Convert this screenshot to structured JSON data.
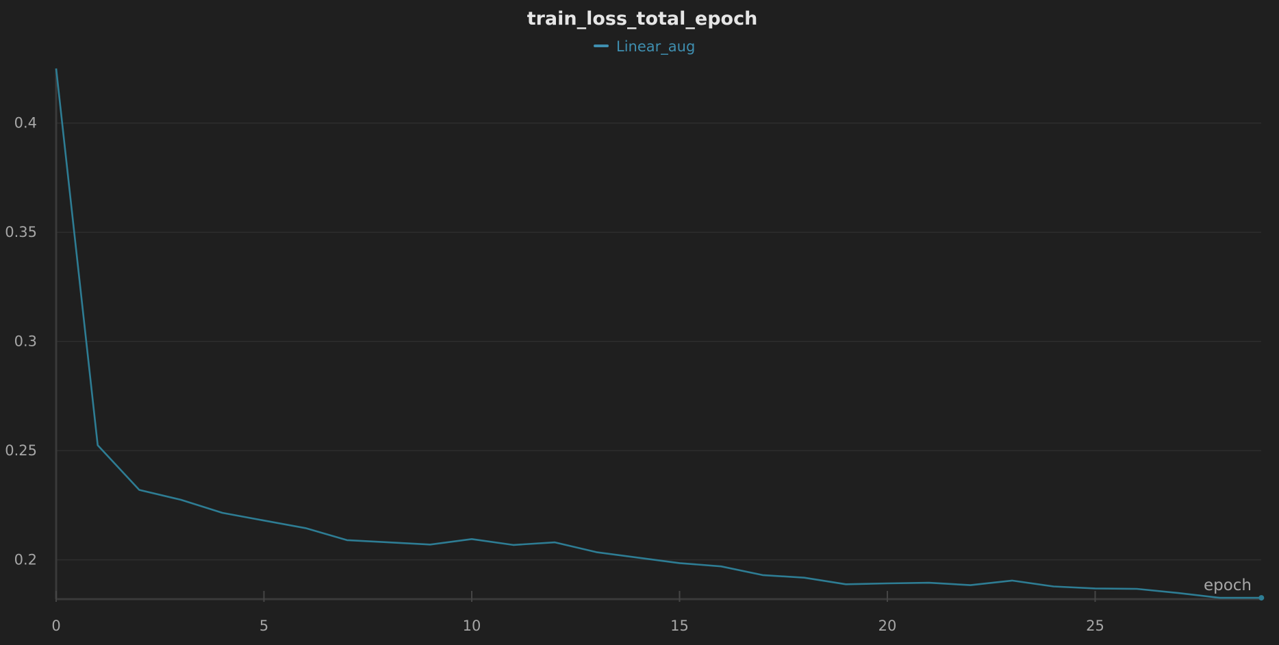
{
  "chart_data": {
    "type": "line",
    "title": "train_loss_total_epoch",
    "xlabel": "epoch",
    "ylabel": "",
    "xlim": [
      0,
      29
    ],
    "ylim": [
      0.182,
      0.425
    ],
    "xticks": [
      0,
      5,
      10,
      15,
      20,
      25
    ],
    "xtick_labels": [
      "0",
      "5",
      "10",
      "15",
      "20",
      "25"
    ],
    "yticks": [
      0.2,
      0.25,
      0.3,
      0.35,
      0.4
    ],
    "ytick_labels": [
      "0.2",
      "0.25",
      "0.3",
      "0.35",
      "0.4"
    ],
    "grid": "horizontal",
    "legend_position": "top-center",
    "series": [
      {
        "name": "Linear_aug",
        "color": "#2e7d94",
        "legend_color": "#3f8fb0",
        "x": [
          0,
          1,
          2,
          3,
          4,
          5,
          6,
          7,
          8,
          9,
          10,
          11,
          12,
          13,
          14,
          15,
          16,
          17,
          18,
          19,
          20,
          21,
          22,
          23,
          24,
          25,
          26,
          27,
          28,
          29
        ],
        "y": [
          0.425,
          0.2525,
          0.232,
          0.2275,
          0.2215,
          0.218,
          0.2145,
          0.209,
          0.208,
          0.207,
          0.2095,
          0.2068,
          0.208,
          0.2035,
          0.201,
          0.1985,
          0.197,
          0.193,
          0.1918,
          0.1888,
          0.1892,
          0.1895,
          0.1884,
          0.1905,
          0.1878,
          0.1869,
          0.1867,
          0.1848,
          0.1826,
          0.1826
        ]
      }
    ]
  }
}
